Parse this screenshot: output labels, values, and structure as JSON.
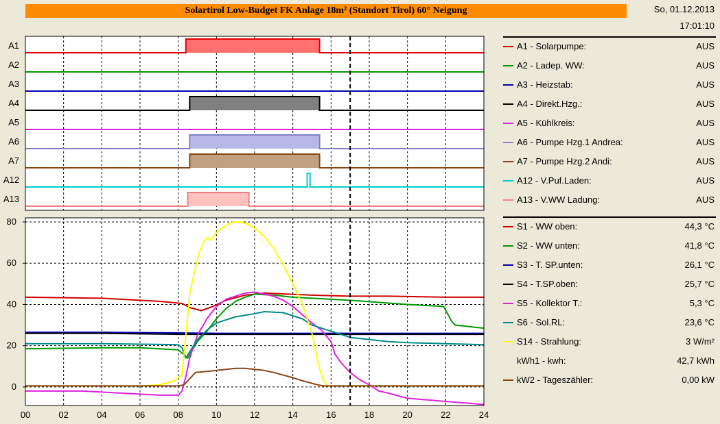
{
  "header": {
    "title": "Solartirol Low-Budget FK Anlage 18m² (Standort Tirol) 60° Neigung",
    "date": "So, 01.12.2013",
    "time": "17:01:10"
  },
  "chart_data": [
    {
      "type": "step",
      "xlim": [
        0,
        24
      ],
      "x_ticks": [
        "00",
        "02",
        "04",
        "06",
        "08",
        "10",
        "12",
        "14",
        "16",
        "18",
        "20",
        "22",
        "24"
      ],
      "current_time": 17.0,
      "series": [
        {
          "name": "A1",
          "legend": "A1 - Solarpumpe:",
          "value": "AUS",
          "color": "#e00000",
          "fill": "#ff7070",
          "on": [
            [
              8.4,
              15.4
            ]
          ]
        },
        {
          "name": "A2",
          "legend": "A2 - Ladep. WW:",
          "value": "AUS",
          "color": "#009900",
          "fill": "#009900",
          "on": []
        },
        {
          "name": "A3",
          "legend": "A3 - Heizstab:",
          "value": "AUS",
          "color": "#0000aa",
          "fill": "#0000aa",
          "on": []
        },
        {
          "name": "A4",
          "legend": "A4 - Direkt.Hzg.:",
          "value": "AUS",
          "color": "#000000",
          "fill": "#808080",
          "on": [
            [
              8.6,
              15.4
            ]
          ]
        },
        {
          "name": "A5",
          "legend": "A5 - Kühlkreis:",
          "value": "AUS",
          "color": "#e020e0",
          "fill": "#e020e0",
          "on": []
        },
        {
          "name": "A6",
          "legend": "A6 - Pumpe Hzg.1 Andrea:",
          "value": "AUS",
          "color": "#8080c8",
          "fill": "#b8b8e8",
          "on": [
            [
              8.6,
              15.4
            ]
          ]
        },
        {
          "name": "A7",
          "legend": "A7 - Pumpe Hzg.2 Andi:",
          "value": "AUS",
          "color": "#8b4513",
          "fill": "#c0a080",
          "on": [
            [
              8.6,
              15.4
            ]
          ]
        },
        {
          "name": "A12",
          "legend": "A12 - V.Puf.Laden:",
          "value": "AUS",
          "color": "#00cccc",
          "fill": "#ffffff",
          "on": [
            [
              14.75,
              14.9
            ]
          ]
        },
        {
          "name": "A13",
          "legend": "A13 - V.WW Ladung:",
          "value": "AUS",
          "color": "#f08080",
          "fill": "#ffc0c0",
          "on": [
            [
              8.5,
              11.7
            ]
          ]
        }
      ]
    },
    {
      "type": "line",
      "xlim": [
        0,
        24
      ],
      "ylim": [
        -9,
        82
      ],
      "y_ticks": [
        0,
        20,
        40,
        60,
        80
      ],
      "x_ticks": [
        "00",
        "02",
        "04",
        "06",
        "08",
        "10",
        "12",
        "14",
        "16",
        "18",
        "20",
        "22",
        "24"
      ],
      "current_time": 17.0,
      "series": [
        {
          "name": "S1",
          "legend": "S1 - WW oben:",
          "value": "44,3 °C",
          "color": "#d00000",
          "points": [
            [
              0,
              43.5
            ],
            [
              4,
              43
            ],
            [
              7,
              41.5
            ],
            [
              8.2,
              40.5
            ],
            [
              8.6,
              38.5
            ],
            [
              9.2,
              37
            ],
            [
              9.8,
              39
            ],
            [
              10.5,
              42
            ],
            [
              11.5,
              44.5
            ],
            [
              12.5,
              45.5
            ],
            [
              15,
              44.5
            ],
            [
              17,
              44
            ],
            [
              19,
              44
            ],
            [
              22,
              43.5
            ],
            [
              24,
              43.5
            ]
          ]
        },
        {
          "name": "S2",
          "legend": "S2 - WW unten:",
          "value": "41,8 °C",
          "color": "#009900",
          "points": [
            [
              0,
              18.5
            ],
            [
              4,
              19
            ],
            [
              6,
              19
            ],
            [
              8,
              18
            ],
            [
              8.5,
              14
            ],
            [
              9,
              22
            ],
            [
              9.5,
              27
            ],
            [
              10,
              33
            ],
            [
              10.5,
              38
            ],
            [
              11,
              41.5
            ],
            [
              11.5,
              43.5
            ],
            [
              12,
              45
            ],
            [
              13,
              44.5
            ],
            [
              14,
              43.5
            ],
            [
              16,
              42.5
            ],
            [
              17,
              42
            ],
            [
              20,
              40
            ],
            [
              21,
              39.5
            ],
            [
              21.9,
              39
            ],
            [
              22.3,
              32
            ],
            [
              22.5,
              30
            ],
            [
              23,
              29.5
            ],
            [
              24,
              28.5
            ]
          ]
        },
        {
          "name": "S3",
          "legend": "S3 - T. SP.unten:",
          "value": "26,1 °C",
          "color": "#0000b0",
          "points": [
            [
              0,
              26.5
            ],
            [
              4,
              26.5
            ],
            [
              8,
              26.2
            ],
            [
              10,
              26
            ],
            [
              12,
              26
            ],
            [
              14,
              26
            ],
            [
              16,
              26
            ],
            [
              18,
              26
            ],
            [
              20,
              26
            ],
            [
              22,
              26
            ],
            [
              24,
              26
            ]
          ]
        },
        {
          "name": "S4",
          "legend": "S4 - T.SP.oben:",
          "value": "25,7 °C",
          "color": "#000000",
          "points": [
            [
              0,
              26
            ],
            [
              4,
              26
            ],
            [
              8,
              25.5
            ],
            [
              10,
              25.5
            ],
            [
              12,
              25.5
            ],
            [
              14,
              25.5
            ],
            [
              16,
              25.5
            ],
            [
              18,
              25.5
            ],
            [
              20,
              25.5
            ],
            [
              22,
              25.5
            ],
            [
              24,
              25.5
            ]
          ]
        },
        {
          "name": "S5",
          "legend": "S5 - Kollektor T.:",
          "value": "5,3 °C",
          "color": "#e020e0",
          "points": [
            [
              0,
              -2
            ],
            [
              3,
              -2
            ],
            [
              5,
              -3
            ],
            [
              7,
              -4
            ],
            [
              8,
              -4
            ],
            [
              8.2,
              -2
            ],
            [
              8.4,
              5
            ],
            [
              8.6,
              14
            ],
            [
              9,
              25
            ],
            [
              9.5,
              33
            ],
            [
              10,
              39
            ],
            [
              10.5,
              42.5
            ],
            [
              11,
              44
            ],
            [
              11.5,
              45.5
            ],
            [
              12,
              46
            ],
            [
              12.5,
              45
            ],
            [
              13,
              44
            ],
            [
              13.5,
              42
            ],
            [
              14,
              39
            ],
            [
              14.5,
              35
            ],
            [
              15,
              31
            ],
            [
              15.5,
              27.5
            ],
            [
              16,
              22
            ],
            [
              16.2,
              16
            ],
            [
              16.5,
              12
            ],
            [
              17,
              7
            ],
            [
              17.5,
              3.5
            ],
            [
              18,
              1
            ],
            [
              18.5,
              -2
            ],
            [
              19,
              -3
            ],
            [
              20,
              -5.5
            ],
            [
              22,
              -7
            ],
            [
              24,
              -8.5
            ]
          ]
        },
        {
          "name": "S6",
          "legend": "S6 - Sol.RL:",
          "value": "23,6 °C",
          "color": "#008b8b",
          "points": [
            [
              0,
              21
            ],
            [
              4,
              21
            ],
            [
              8,
              20.5
            ],
            [
              8.2,
              19
            ],
            [
              8.4,
              14
            ],
            [
              8.6,
              17
            ],
            [
              9,
              23
            ],
            [
              9.5,
              27.5
            ],
            [
              10,
              31
            ],
            [
              11,
              34
            ],
            [
              12,
              35.5
            ],
            [
              12.5,
              36.5
            ],
            [
              13.5,
              36
            ],
            [
              14.5,
              33
            ],
            [
              15,
              30
            ],
            [
              15.5,
              28.5
            ],
            [
              16,
              27
            ],
            [
              16.5,
              25.5
            ],
            [
              17,
              24
            ],
            [
              18,
              23
            ],
            [
              19,
              22
            ],
            [
              20,
              21.5
            ],
            [
              22,
              21
            ],
            [
              24,
              20.5
            ]
          ]
        },
        {
          "name": "S14",
          "legend": "S14 - Strahlung:",
          "value": "3 W/m²",
          "color": "#ffff00",
          "points": [
            [
              0,
              0.5
            ],
            [
              6,
              0.5
            ],
            [
              7,
              1
            ],
            [
              7.8,
              3
            ],
            [
              8.2,
              6
            ],
            [
              8.4,
              25
            ],
            [
              8.6,
              45
            ],
            [
              8.9,
              58
            ],
            [
              9.1,
              65
            ],
            [
              9.3,
              70
            ],
            [
              9.5,
              72.5
            ],
            [
              9.7,
              71
            ],
            [
              10,
              75
            ],
            [
              10.3,
              77
            ],
            [
              10.7,
              79.5
            ],
            [
              11,
              80
            ],
            [
              11.3,
              80
            ],
            [
              11.6,
              79
            ],
            [
              12,
              77
            ],
            [
              12.5,
              73
            ],
            [
              13,
              67
            ],
            [
              13.5,
              59
            ],
            [
              14,
              50
            ],
            [
              14.5,
              40
            ],
            [
              15,
              26
            ],
            [
              15.3,
              12
            ],
            [
              15.6,
              3
            ],
            [
              15.8,
              0.5
            ],
            [
              17,
              0.5
            ],
            [
              24,
              0.5
            ]
          ]
        },
        {
          "name": "kWh1",
          "legend": "kWh1 - kwh:",
          "value": "42,7 kWh",
          "color": "#ece9d8",
          "points": []
        },
        {
          "name": "kW2",
          "legend": "kW2 - Tageszähler:",
          "value": "0,00 kW",
          "color": "#8b4513",
          "points": [
            [
              0,
              0.5
            ],
            [
              8,
              0.5
            ],
            [
              8.3,
              1
            ],
            [
              8.6,
              4
            ],
            [
              8.9,
              7
            ],
            [
              9.5,
              7.5
            ],
            [
              10,
              8
            ],
            [
              10.5,
              8.5
            ],
            [
              11,
              9
            ],
            [
              11.5,
              9
            ],
            [
              12,
              8.5
            ],
            [
              12.5,
              8
            ],
            [
              13,
              7
            ],
            [
              14,
              4.5
            ],
            [
              14.5,
              3
            ],
            [
              15.3,
              1
            ],
            [
              15.6,
              0.5
            ],
            [
              24,
              0.5
            ]
          ]
        }
      ]
    }
  ]
}
